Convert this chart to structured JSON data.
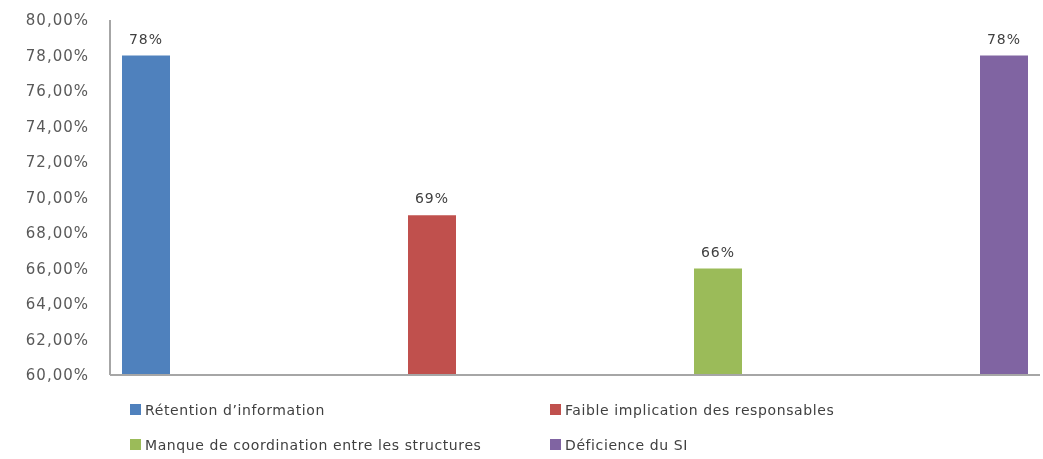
{
  "chart_data": {
    "type": "bar",
    "categories": [
      null
    ],
    "series": [
      {
        "name": "Rétention d’information",
        "color": "#4f81bd",
        "values": [
          78
        ],
        "value_labels": [
          "78%"
        ]
      },
      {
        "name": "Faible implication des responsables",
        "color": "#c0504d",
        "values": [
          69
        ],
        "value_labels": [
          "69%"
        ]
      },
      {
        "name": "Manque de coordination entre les structures",
        "color": "#9bbb59",
        "values": [
          66
        ],
        "value_labels": [
          "66%"
        ]
      },
      {
        "name": "Déficience du SI",
        "color": "#8064a2",
        "values": [
          78
        ],
        "value_labels": [
          "78%"
        ]
      }
    ],
    "ylim": [
      60,
      80
    ],
    "yticks": [
      {
        "value": 60,
        "label": "60,00%"
      },
      {
        "value": 62,
        "label": "62,00%"
      },
      {
        "value": 64,
        "label": "64,00%"
      },
      {
        "value": 66,
        "label": "66,00%"
      },
      {
        "value": 68,
        "label": "68,00%"
      },
      {
        "value": 70,
        "label": "70,00%"
      },
      {
        "value": 72,
        "label": "72,00%"
      },
      {
        "value": 74,
        "label": "74,00%"
      },
      {
        "value": 76,
        "label": "76,00%"
      },
      {
        "value": 78,
        "label": "78,00%"
      },
      {
        "value": 80,
        "label": "80,00%"
      }
    ],
    "tick_labels": "y",
    "legend": "bottom"
  }
}
